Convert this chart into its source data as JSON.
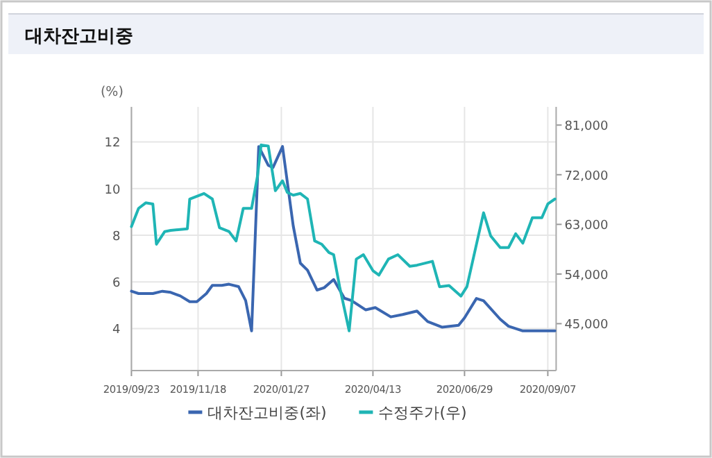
{
  "chart_data": {
    "type": "line",
    "title": "대차잔고비중",
    "ylabel": "(%)",
    "xlim": [
      "2019-09-23",
      "2020-09-14"
    ],
    "xticks": [
      {
        "value": "2019-09-23",
        "label": "2019/09/23"
      },
      {
        "value": "2019-11-18",
        "label": "2019/11/18"
      },
      {
        "value": "2020-01-27",
        "label": "2020/01/27"
      },
      {
        "value": "2020-04-13",
        "label": "2020/04/13"
      },
      {
        "value": "2020-06-29",
        "label": "2020/06/29"
      },
      {
        "value": "2020-09-07",
        "label": "2020/09/07"
      }
    ],
    "ylim": [
      2.2,
      13.5
    ],
    "yticks": [
      4,
      6,
      8,
      10,
      12
    ],
    "y2lim": [
      36500,
      84300
    ],
    "y2ticks": [
      {
        "value": 45000,
        "label": "45,000"
      },
      {
        "value": 54000,
        "label": "54,000"
      },
      {
        "value": 63000,
        "label": "63,000"
      },
      {
        "value": 72000,
        "label": "72,000"
      },
      {
        "value": 81000,
        "label": "81,000"
      }
    ],
    "grid": true,
    "legend": "bottom",
    "series": [
      {
        "name": "대차잔고비중(좌)",
        "color": "#3a66b0",
        "x": [
          "2019-09-23",
          "2019-09-29",
          "2019-10-11",
          "2019-10-19",
          "2019-10-26",
          "2019-11-03",
          "2019-11-11",
          "2019-11-17",
          "2019-11-25",
          "2019-11-30",
          "2019-12-08",
          "2019-12-14",
          "2019-12-22",
          "2019-12-28",
          "2020-01-02",
          "2020-01-08",
          "2020-01-16",
          "2020-01-20",
          "2020-01-28",
          "2020-02-06",
          "2020-02-12",
          "2020-02-18",
          "2020-02-26",
          "2020-03-03",
          "2020-03-11",
          "2020-03-20",
          "2020-03-26",
          "2020-04-07",
          "2020-04-15",
          "2020-04-28",
          "2020-05-08",
          "2020-05-20",
          "2020-05-29",
          "2020-06-10",
          "2020-06-24",
          "2020-06-29",
          "2020-07-09",
          "2020-07-15",
          "2020-07-29",
          "2020-08-05",
          "2020-08-17",
          "2020-09-13"
        ],
        "values": [
          5.6,
          5.5,
          5.5,
          5.6,
          5.55,
          5.4,
          5.15,
          5.15,
          5.5,
          5.85,
          5.85,
          5.9,
          5.8,
          5.2,
          3.9,
          11.8,
          11.0,
          10.9,
          11.8,
          8.4,
          6.8,
          6.5,
          5.65,
          5.75,
          6.1,
          5.3,
          5.2,
          4.8,
          4.9,
          4.5,
          4.6,
          4.75,
          4.3,
          4.06,
          4.14,
          4.46,
          5.29,
          5.19,
          4.4,
          4.1,
          3.9,
          3.9
        ]
      },
      {
        "name": "수정주가(우)",
        "color": "#1fb5b5",
        "axis": "y2",
        "x": [
          "2019-09-23",
          "2019-09-29",
          "2019-10-05",
          "2019-10-11",
          "2019-10-14",
          "2019-10-21",
          "2019-10-26",
          "2019-11-09",
          "2019-11-11",
          "2019-11-23",
          "2019-11-30",
          "2019-12-06",
          "2019-12-14",
          "2019-12-20",
          "2019-12-26",
          "2020-01-02",
          "2020-01-07",
          "2020-01-10",
          "2020-01-16",
          "2020-01-22",
          "2020-01-28",
          "2020-02-01",
          "2020-02-06",
          "2020-02-12",
          "2020-02-18",
          "2020-02-24",
          "2020-03-01",
          "2020-03-07",
          "2020-03-11",
          "2020-03-16",
          "2020-03-24",
          "2020-03-30",
          "2020-04-05",
          "2020-04-13",
          "2020-04-18",
          "2020-04-26",
          "2020-05-04",
          "2020-05-14",
          "2020-05-20",
          "2020-06-02",
          "2020-06-08",
          "2020-06-16",
          "2020-06-26",
          "2020-07-01",
          "2020-07-15",
          "2020-07-21",
          "2020-07-29",
          "2020-08-05",
          "2020-08-11",
          "2020-08-17",
          "2020-08-25",
          "2020-09-02",
          "2020-09-07",
          "2020-09-13"
        ],
        "values": [
          62600,
          65900,
          66900,
          66700,
          59400,
          61700,
          61900,
          62200,
          67600,
          68600,
          67600,
          62400,
          61700,
          60000,
          65900,
          65900,
          71800,
          77400,
          77200,
          69100,
          70900,
          68800,
          68300,
          68600,
          67600,
          60000,
          59400,
          57900,
          57500,
          51700,
          43700,
          56700,
          57500,
          54600,
          53800,
          56700,
          57500,
          55400,
          55600,
          56300,
          51700,
          51900,
          50000,
          51700,
          65100,
          60900,
          58800,
          58800,
          61300,
          59600,
          64200,
          64200,
          66700,
          67600
        ]
      }
    ]
  }
}
